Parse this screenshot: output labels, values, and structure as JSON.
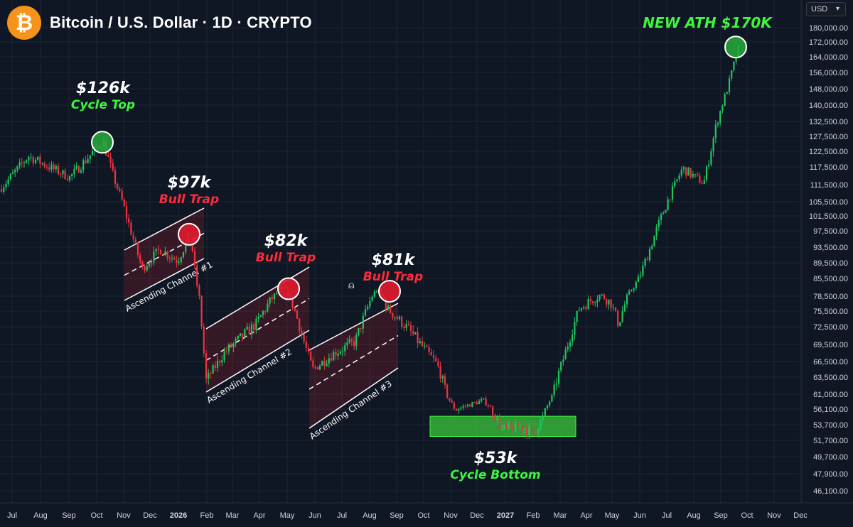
{
  "header": {
    "title": "Bitcoin / U.S. Dollar · 1D · CRYPTO",
    "logo_icon": "bitcoin-logo-icon",
    "logo_glyph": "₿",
    "brand_color": "#f7931a"
  },
  "price_scale": {
    "currency": "USD"
  },
  "colors": {
    "up": "#22c55e",
    "down": "#ef3340",
    "background": "#0f1724",
    "grid": "#1c2433"
  },
  "annotations": {
    "cycle_top": {
      "value": "$126k",
      "label": "Cycle Top"
    },
    "bull_trap_1": {
      "value": "$97k",
      "label": "Bull Trap"
    },
    "bull_trap_2": {
      "value": "$82k",
      "label": "Bull Trap"
    },
    "bull_trap_3": {
      "value": "$81k",
      "label": "Bull Trap"
    },
    "cycle_bottom": {
      "value": "$53k",
      "label": "Cycle Bottom"
    },
    "ath": {
      "label": "NEW ATH $170K"
    },
    "channels": [
      "Ascending Channel #1",
      "Ascending Channel #2",
      "Ascending Channel #3"
    ]
  },
  "chart_data": {
    "type": "line",
    "title": "Bitcoin / U.S. Dollar · 1D · CRYPTO",
    "y_ticks": [
      180000,
      172000,
      164000,
      156000,
      148000,
      140000,
      132500,
      127500,
      122500,
      117500,
      111500,
      105500,
      101500,
      97500,
      93500,
      89500,
      85500,
      78500,
      75500,
      72500,
      69500,
      66500,
      63500,
      61000,
      56100,
      53700,
      51700,
      49700,
      47900,
      46100
    ],
    "y_tick_labels": [
      "180,000.00",
      "172,000.00",
      "164,000.00",
      "156,000.00",
      "148,000.00",
      "140,000.00",
      "132,500.00",
      "127,500.00",
      "122,500.00",
      "117,500.00",
      "111,500.00",
      "105,500.00",
      "101,500.00",
      "97,500.00",
      "93,500.00",
      "89,500.00",
      "85,500.00",
      "78,500.00",
      "75,500.00",
      "72,500.00",
      "69,500.00",
      "66,500.00",
      "63,500.00",
      "61,000.00",
      "56,100.00",
      "53,700.00",
      "51,700.00",
      "49,700.00",
      "47,900.00",
      "46,100.00"
    ],
    "x_ticks": [
      "Jul",
      "Aug",
      "Sep",
      "Oct",
      "Nov",
      "Dec",
      "2026",
      "Feb",
      "Mar",
      "Apr",
      "May",
      "Jun",
      "Jul",
      "Aug",
      "Sep",
      "Oct",
      "Nov",
      "Dec",
      "2027",
      "Feb",
      "Mar",
      "Apr",
      "May",
      "Jun",
      "Jul",
      "Aug",
      "Sep",
      "Oct",
      "Nov",
      "Dec"
    ],
    "series": [
      {
        "x": [
          "Jul",
          "Aug",
          "Sep",
          "Oct",
          "Oct",
          "Nov",
          "Nov",
          "Dec",
          "Jan",
          "2026",
          "Feb",
          "Feb",
          "Mar",
          "Apr",
          "May",
          "May",
          "Jun",
          "Jul",
          "Aug",
          "Aug",
          "Sep",
          "Oct",
          "Oct",
          "Nov",
          "Dec",
          "Dec",
          "2027",
          "Jan",
          "Feb",
          "Feb",
          "Mar",
          "Apr",
          "May",
          "May",
          "Jun",
          "Jul",
          "Aug",
          "Aug",
          "Sep",
          "Sep"
        ],
        "values": [
          110000,
          121000,
          114000,
          119000,
          126000,
          114000,
          100000,
          88000,
          93000,
          90000,
          97000,
          63000,
          68000,
          73000,
          82000,
          71000,
          65000,
          68000,
          70000,
          81000,
          76000,
          72000,
          66000,
          56000,
          59000,
          53000,
          53500,
          52500,
          55000,
          64000,
          76000,
          79000,
          77000,
          73000,
          86000,
          101000,
          117000,
          112000,
          150000,
          170000
        ]
      }
    ],
    "zones": [
      {
        "label": "Cycle Bottom",
        "y_range": [
          52200,
          55000
        ],
        "x_range": [
          "Nov",
          "Feb"
        ]
      }
    ]
  }
}
